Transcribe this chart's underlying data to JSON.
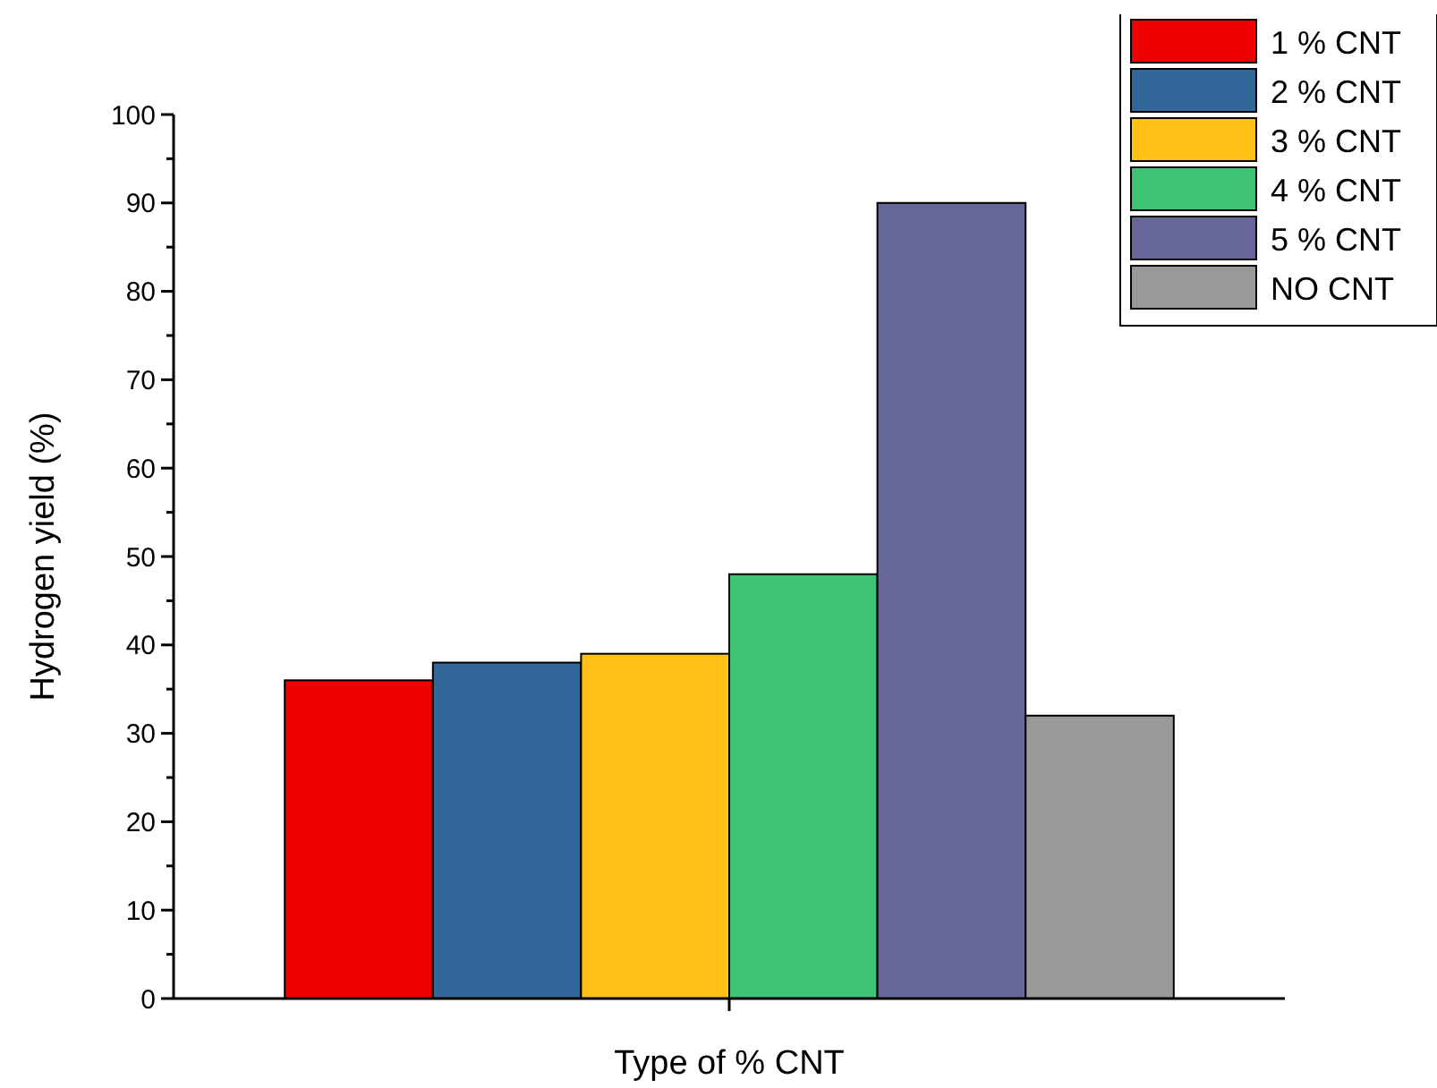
{
  "chart_data": {
    "type": "bar",
    "xlabel": "Type of % CNT",
    "ylabel": "Hydrogen yield (%)",
    "categories": [
      null
    ],
    "series": [
      {
        "name": "1 % CNT",
        "color": "#ee0000",
        "values": [
          36
        ]
      },
      {
        "name": "2 % CNT",
        "color": "#336699",
        "values": [
          38
        ]
      },
      {
        "name": "3 % CNT",
        "color": "#ffc116",
        "values": [
          39
        ]
      },
      {
        "name": "4 % CNT",
        "color": "#3cc373",
        "values": [
          48
        ]
      },
      {
        "name": "5 % CNT",
        "color": "#666699",
        "values": [
          90
        ]
      },
      {
        "name": "NO CNT",
        "color": "#999999",
        "values": [
          32
        ]
      }
    ],
    "ylim": [
      0,
      100
    ],
    "yticks": [
      0,
      {
        "value": 5,
        "label": null
      },
      10,
      {
        "value": 15,
        "label": null
      },
      20,
      {
        "value": 25,
        "label": null
      },
      30,
      {
        "value": 35,
        "label": null
      },
      40,
      {
        "value": 45,
        "label": null
      },
      50,
      {
        "value": 55,
        "label": null
      },
      60,
      {
        "value": 65,
        "label": null
      },
      70,
      {
        "value": 75,
        "label": null
      },
      80,
      {
        "value": 85,
        "label": null
      },
      90,
      {
        "value": 95,
        "label": null
      },
      100
    ],
    "legend": "top right",
    "grid": false
  }
}
